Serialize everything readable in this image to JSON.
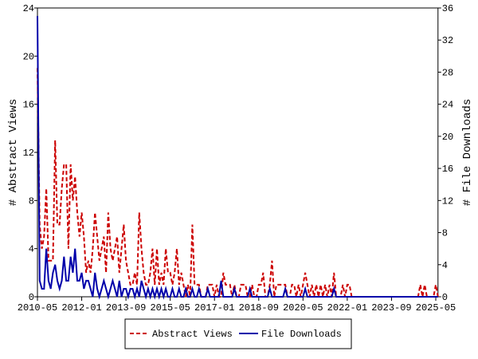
{
  "chart_data": {
    "type": "line",
    "y_label": "# Abstract Views",
    "y2_label": "# File Downloads",
    "x": [
      "2010-05",
      "2010-06",
      "2010-07",
      "2010-08",
      "2010-09",
      "2010-10",
      "2010-11",
      "2010-12",
      "2011-01",
      "2011-02",
      "2011-03",
      "2011-04",
      "2011-05",
      "2011-06",
      "2011-07",
      "2011-08",
      "2011-09",
      "2011-10",
      "2011-11",
      "2011-12",
      "2012-01",
      "2012-02",
      "2012-03",
      "2012-04",
      "2012-05",
      "2012-06",
      "2012-07",
      "2012-08",
      "2012-09",
      "2012-10",
      "2012-11",
      "2012-12",
      "2013-01",
      "2013-02",
      "2013-03",
      "2013-04",
      "2013-05",
      "2013-06",
      "2013-07",
      "2013-08",
      "2013-09",
      "2013-10",
      "2013-11",
      "2013-12",
      "2014-01",
      "2014-02",
      "2014-03",
      "2014-04",
      "2014-05",
      "2014-06",
      "2014-07",
      "2014-08",
      "2014-09",
      "2014-10",
      "2014-11",
      "2014-12",
      "2015-01",
      "2015-02",
      "2015-03",
      "2015-04",
      "2015-05",
      "2015-06",
      "2015-07",
      "2015-08",
      "2015-09",
      "2015-10",
      "2015-11",
      "2015-12",
      "2016-01",
      "2016-02",
      "2016-03",
      "2016-04",
      "2016-05",
      "2016-06",
      "2016-07",
      "2016-08",
      "2016-09",
      "2016-10",
      "2016-11",
      "2016-12",
      "2017-01",
      "2017-02",
      "2017-03",
      "2017-04",
      "2017-05",
      "2017-06",
      "2017-07",
      "2017-08",
      "2017-09",
      "2017-10",
      "2017-11",
      "2017-12",
      "2018-01",
      "2018-02",
      "2018-03",
      "2018-04",
      "2018-05",
      "2018-06",
      "2018-07",
      "2018-08",
      "2018-09",
      "2018-10",
      "2018-11",
      "2018-12",
      "2019-01",
      "2019-02",
      "2019-03",
      "2019-04",
      "2019-05",
      "2019-06",
      "2019-07",
      "2019-08",
      "2019-09",
      "2019-10",
      "2019-11",
      "2019-12",
      "2020-01",
      "2020-02",
      "2020-03",
      "2020-04",
      "2020-05",
      "2020-06",
      "2020-07",
      "2020-08",
      "2020-09",
      "2020-10",
      "2020-11",
      "2020-12",
      "2021-01",
      "2021-02",
      "2021-03",
      "2021-04",
      "2021-05",
      "2021-06",
      "2021-07",
      "2021-08",
      "2021-09",
      "2021-10",
      "2021-11",
      "2021-12",
      "2022-01",
      "2022-02",
      "2022-03",
      "2022-04",
      "2022-05",
      "2022-06",
      "2022-07",
      "2022-08",
      "2022-09",
      "2022-10",
      "2022-11",
      "2022-12",
      "2023-01",
      "2023-02",
      "2023-03",
      "2023-04",
      "2023-05",
      "2023-06",
      "2023-07",
      "2023-08",
      "2023-09",
      "2023-10",
      "2023-11",
      "2023-12",
      "2024-01",
      "2024-02",
      "2024-03",
      "2024-04",
      "2024-05",
      "2024-06",
      "2024-07",
      "2024-08",
      "2024-09",
      "2024-10",
      "2024-11",
      "2024-12",
      "2025-01",
      "2025-02",
      "2025-03",
      "2025-04",
      "2025-05",
      "2025-06"
    ],
    "series": [
      {
        "name": "Abstract Views",
        "color": "#cc0000",
        "dash": true,
        "values": [
          19,
          6,
          4,
          5,
          9,
          3,
          3,
          3,
          13,
          6,
          6,
          9,
          11,
          11,
          4,
          11,
          8,
          10,
          7,
          5,
          7,
          5,
          2,
          3,
          2,
          4,
          7,
          5,
          3,
          4,
          5,
          2,
          7,
          4,
          3,
          4,
          5,
          2,
          4,
          6,
          3,
          2,
          1,
          1,
          2,
          1,
          7,
          4,
          2,
          1,
          1,
          2,
          4,
          1,
          4,
          1,
          2,
          1,
          4,
          2,
          2,
          1,
          2,
          4,
          1,
          2,
          1,
          0,
          1,
          0,
          6,
          1,
          1,
          1,
          0,
          0,
          0,
          1,
          1,
          1,
          0,
          1,
          0,
          0,
          2,
          1,
          1,
          1,
          0,
          1,
          0,
          0,
          1,
          1,
          1,
          0,
          0,
          1,
          0,
          0,
          1,
          1,
          2,
          0,
          0,
          1,
          3,
          0,
          1,
          1,
          1,
          1,
          1,
          0,
          0,
          1,
          1,
          0,
          1,
          0,
          1,
          2,
          1,
          0,
          1,
          0,
          1,
          0,
          1,
          0,
          1,
          0,
          1,
          0,
          2,
          0,
          0,
          0,
          1,
          0,
          1,
          1,
          0,
          0,
          0,
          0,
          0,
          0,
          0,
          0,
          0,
          0,
          0,
          0,
          0,
          0,
          0,
          0,
          0,
          0,
          0,
          0,
          0,
          0,
          0,
          0,
          0,
          0,
          0,
          0,
          0,
          0,
          0,
          1,
          0,
          1,
          0,
          0,
          0,
          0,
          1,
          0
        ]
      },
      {
        "name": "File Downloads",
        "color": "#0000aa",
        "axis": "y2",
        "values": [
          35,
          2,
          1,
          1,
          6,
          2,
          1,
          3,
          4,
          2,
          1,
          2,
          5,
          2,
          2,
          5,
          3,
          6,
          2,
          2,
          3,
          1,
          2,
          2,
          1,
          0,
          3,
          1,
          0,
          1,
          2,
          1,
          0,
          1,
          2,
          1,
          0,
          2,
          0,
          1,
          1,
          0,
          1,
          1,
          0,
          1,
          0,
          2,
          1,
          0,
          1,
          0,
          1,
          0,
          1,
          0,
          1,
          0,
          1,
          0,
          0,
          1,
          0,
          0,
          1,
          0,
          0,
          1,
          0,
          0,
          1,
          0,
          0,
          1,
          0,
          0,
          0,
          1,
          0,
          0,
          0,
          0,
          0,
          2,
          0,
          0,
          0,
          0,
          0,
          1,
          0,
          0,
          0,
          0,
          0,
          0,
          1,
          0,
          0,
          0,
          0,
          0,
          0,
          0,
          0,
          1,
          0,
          0,
          0,
          0,
          0,
          0,
          1,
          0,
          0,
          0,
          0,
          0,
          0,
          0,
          0,
          1,
          0,
          0,
          0,
          0,
          0,
          0,
          0,
          0,
          0,
          0,
          0,
          0,
          1,
          0,
          0,
          0,
          0,
          0,
          0,
          0,
          0,
          0,
          0,
          0,
          0,
          0,
          0,
          0,
          0,
          0,
          0,
          0,
          0,
          0,
          0,
          0,
          0,
          0,
          0,
          0,
          0,
          0,
          0,
          0,
          0,
          0,
          0,
          0,
          0,
          0,
          0,
          0,
          0,
          0,
          0,
          0,
          0,
          0,
          0,
          0
        ]
      }
    ],
    "xlim": [
      "2010-05",
      "2025-06"
    ],
    "xticks": [
      "2010-05",
      "2012-01",
      "2013-09",
      "2015-05",
      "2017-01",
      "2018-09",
      "2020-05",
      "2022-01",
      "2023-09",
      "2025-05"
    ],
    "ylim": [
      0,
      24
    ],
    "yticks": [
      0,
      4,
      8,
      12,
      16,
      20,
      24
    ],
    "y2lim": [
      0,
      36
    ],
    "y2ticks": [
      0,
      4,
      8,
      12,
      16,
      20,
      24,
      28,
      32,
      36
    ]
  }
}
